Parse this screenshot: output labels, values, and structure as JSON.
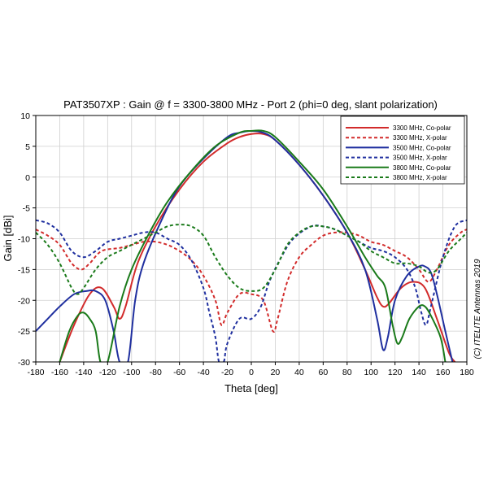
{
  "chart_data": {
    "type": "line",
    "title": "PAT3507XP : Gain @ f = 3300-3800 MHz - Port 2 (phi=0 deg, slant polarization)",
    "xlabel": "Theta [deg]",
    "ylabel": "Gain [dBi]",
    "xlim": [
      -180,
      180
    ],
    "ylim": [
      -30,
      10
    ],
    "xticks": [
      -180,
      -160,
      -140,
      -120,
      -100,
      -80,
      -60,
      -40,
      -20,
      0,
      20,
      40,
      60,
      80,
      100,
      120,
      140,
      160,
      180
    ],
    "yticks": [
      10,
      5,
      0,
      -5,
      -10,
      -15,
      -20,
      -25,
      -30
    ],
    "grid": true,
    "legend_position": "top-right",
    "copyright": "(C) ITELITE Antennas 2019",
    "series": [
      {
        "name": "3300 MHz, Co-polar",
        "color": "#d22b2b",
        "dash": "solid",
        "points": [
          [
            -160,
            -30
          ],
          [
            -148,
            -24
          ],
          [
            -135,
            -19
          ],
          [
            -125,
            -18
          ],
          [
            -115,
            -21
          ],
          [
            -110,
            -23
          ],
          [
            -105,
            -21
          ],
          [
            -95,
            -14
          ],
          [
            -80,
            -8
          ],
          [
            -60,
            -2
          ],
          [
            -40,
            2.5
          ],
          [
            -20,
            5.5
          ],
          [
            -10,
            6.5
          ],
          [
            0,
            7
          ],
          [
            10,
            7
          ],
          [
            20,
            6
          ],
          [
            40,
            2
          ],
          [
            60,
            -3
          ],
          [
            80,
            -9
          ],
          [
            95,
            -15
          ],
          [
            105,
            -19.5
          ],
          [
            110,
            -21
          ],
          [
            115,
            -20.5
          ],
          [
            125,
            -18
          ],
          [
            135,
            -17
          ],
          [
            145,
            -18
          ],
          [
            155,
            -23
          ],
          [
            165,
            -28.5
          ],
          [
            170,
            -30
          ]
        ]
      },
      {
        "name": "3300 MHz, X-polar",
        "color": "#d22b2b",
        "dash": "dash",
        "points": [
          [
            -180,
            -8.5
          ],
          [
            -170,
            -9.5
          ],
          [
            -160,
            -11
          ],
          [
            -150,
            -14
          ],
          [
            -142,
            -15
          ],
          [
            -135,
            -14
          ],
          [
            -125,
            -12
          ],
          [
            -110,
            -11.5
          ],
          [
            -100,
            -11
          ],
          [
            -90,
            -10.5
          ],
          [
            -80,
            -10.5
          ],
          [
            -70,
            -11
          ],
          [
            -60,
            -12
          ],
          [
            -50,
            -13.5
          ],
          [
            -40,
            -16
          ],
          [
            -30,
            -20
          ],
          [
            -25,
            -24
          ],
          [
            -20,
            -22
          ],
          [
            -10,
            -19
          ],
          [
            0,
            -19
          ],
          [
            10,
            -20
          ],
          [
            18,
            -25
          ],
          [
            22,
            -23
          ],
          [
            30,
            -17
          ],
          [
            40,
            -13
          ],
          [
            50,
            -11
          ],
          [
            60,
            -9.5
          ],
          [
            70,
            -9
          ],
          [
            80,
            -9
          ],
          [
            90,
            -9.5
          ],
          [
            100,
            -10.5
          ],
          [
            110,
            -11
          ],
          [
            120,
            -12
          ],
          [
            130,
            -13
          ],
          [
            140,
            -15
          ],
          [
            148,
            -17
          ],
          [
            155,
            -15
          ],
          [
            165,
            -11
          ],
          [
            175,
            -9
          ],
          [
            180,
            -8.5
          ]
        ]
      },
      {
        "name": "3500 MHz, Co-polar",
        "color": "#1f2f9f",
        "dash": "solid",
        "points": [
          [
            -180,
            -25
          ],
          [
            -170,
            -23
          ],
          [
            -160,
            -21
          ],
          [
            -148,
            -19
          ],
          [
            -138,
            -18.5
          ],
          [
            -130,
            -18.5
          ],
          [
            -122,
            -20
          ],
          [
            -115,
            -25
          ],
          [
            -110,
            -30
          ],
          [
            -103,
            -30
          ],
          [
            -97,
            -20
          ],
          [
            -90,
            -14
          ],
          [
            -75,
            -7
          ],
          [
            -60,
            -1.5
          ],
          [
            -40,
            3
          ],
          [
            -20,
            6.5
          ],
          [
            -10,
            7.2
          ],
          [
            0,
            7.5
          ],
          [
            10,
            7.2
          ],
          [
            20,
            6
          ],
          [
            40,
            2
          ],
          [
            60,
            -3
          ],
          [
            80,
            -9
          ],
          [
            95,
            -15
          ],
          [
            105,
            -23
          ],
          [
            110,
            -28
          ],
          [
            114,
            -26
          ],
          [
            120,
            -20
          ],
          [
            130,
            -16
          ],
          [
            140,
            -14.5
          ],
          [
            145,
            -14.5
          ],
          [
            150,
            -15.5
          ],
          [
            155,
            -19
          ],
          [
            162,
            -25
          ],
          [
            168,
            -30
          ]
        ]
      },
      {
        "name": "3500 MHz, X-polar",
        "color": "#1f2f9f",
        "dash": "dash",
        "points": [
          [
            -180,
            -7
          ],
          [
            -170,
            -7.5
          ],
          [
            -160,
            -9
          ],
          [
            -150,
            -12
          ],
          [
            -140,
            -13
          ],
          [
            -130,
            -12
          ],
          [
            -120,
            -10.5
          ],
          [
            -110,
            -10
          ],
          [
            -100,
            -9.5
          ],
          [
            -90,
            -9
          ],
          [
            -80,
            -9
          ],
          [
            -70,
            -10
          ],
          [
            -60,
            -11
          ],
          [
            -50,
            -13.5
          ],
          [
            -40,
            -18
          ],
          [
            -35,
            -22
          ],
          [
            -30,
            -26
          ],
          [
            -27,
            -30
          ],
          [
            -23,
            -30
          ],
          [
            -20,
            -27
          ],
          [
            -10,
            -23
          ],
          [
            0,
            -23
          ],
          [
            8,
            -21
          ],
          [
            15,
            -17
          ],
          [
            25,
            -13
          ],
          [
            35,
            -10
          ],
          [
            50,
            -8
          ],
          [
            60,
            -8
          ],
          [
            70,
            -8.5
          ],
          [
            80,
            -9.5
          ],
          [
            90,
            -10.5
          ],
          [
            100,
            -11.5
          ],
          [
            110,
            -12
          ],
          [
            120,
            -13
          ],
          [
            130,
            -15
          ],
          [
            137,
            -18
          ],
          [
            142,
            -22
          ],
          [
            146,
            -24
          ],
          [
            150,
            -21
          ],
          [
            160,
            -13
          ],
          [
            170,
            -8
          ],
          [
            180,
            -7
          ]
        ]
      },
      {
        "name": "3800 MHz, Co-polar",
        "color": "#1a7a1a",
        "dash": "solid",
        "points": [
          [
            -160,
            -30
          ],
          [
            -152,
            -25
          ],
          [
            -145,
            -22.5
          ],
          [
            -140,
            -22
          ],
          [
            -135,
            -23
          ],
          [
            -130,
            -25
          ],
          [
            -126,
            -30
          ],
          [
            -120,
            -30
          ],
          [
            -110,
            -21
          ],
          [
            -100,
            -15
          ],
          [
            -85,
            -9
          ],
          [
            -70,
            -4
          ],
          [
            -50,
            1
          ],
          [
            -30,
            5
          ],
          [
            -10,
            7.2
          ],
          [
            0,
            7.5
          ],
          [
            10,
            7.5
          ],
          [
            20,
            6.5
          ],
          [
            40,
            2.5
          ],
          [
            60,
            -2
          ],
          [
            80,
            -8
          ],
          [
            95,
            -13
          ],
          [
            105,
            -16
          ],
          [
            112,
            -18
          ],
          [
            118,
            -24
          ],
          [
            122,
            -27
          ],
          [
            126,
            -26
          ],
          [
            132,
            -23
          ],
          [
            140,
            -21
          ],
          [
            145,
            -21
          ],
          [
            150,
            -22.5
          ],
          [
            158,
            -26
          ],
          [
            162,
            -30
          ]
        ]
      },
      {
        "name": "3800 MHz, X-polar",
        "color": "#1a7a1a",
        "dash": "dash",
        "points": [
          [
            -180,
            -9
          ],
          [
            -170,
            -11
          ],
          [
            -160,
            -14
          ],
          [
            -150,
            -18
          ],
          [
            -145,
            -19
          ],
          [
            -140,
            -18
          ],
          [
            -130,
            -15
          ],
          [
            -120,
            -13
          ],
          [
            -110,
            -12
          ],
          [
            -100,
            -11
          ],
          [
            -90,
            -10
          ],
          [
            -80,
            -9
          ],
          [
            -70,
            -8
          ],
          [
            -60,
            -7.7
          ],
          [
            -50,
            -8
          ],
          [
            -40,
            -9.5
          ],
          [
            -30,
            -13
          ],
          [
            -20,
            -16
          ],
          [
            -10,
            -18
          ],
          [
            0,
            -18.5
          ],
          [
            10,
            -18
          ],
          [
            20,
            -15
          ],
          [
            30,
            -11
          ],
          [
            40,
            -9
          ],
          [
            50,
            -8
          ],
          [
            60,
            -8
          ],
          [
            70,
            -8.5
          ],
          [
            80,
            -9.5
          ],
          [
            90,
            -10.5
          ],
          [
            100,
            -12
          ],
          [
            110,
            -13
          ],
          [
            120,
            -14
          ],
          [
            130,
            -14
          ],
          [
            140,
            -14.5
          ],
          [
            148,
            -15.5
          ],
          [
            155,
            -15
          ],
          [
            165,
            -12
          ],
          [
            175,
            -10
          ],
          [
            180,
            -9
          ]
        ]
      }
    ]
  }
}
